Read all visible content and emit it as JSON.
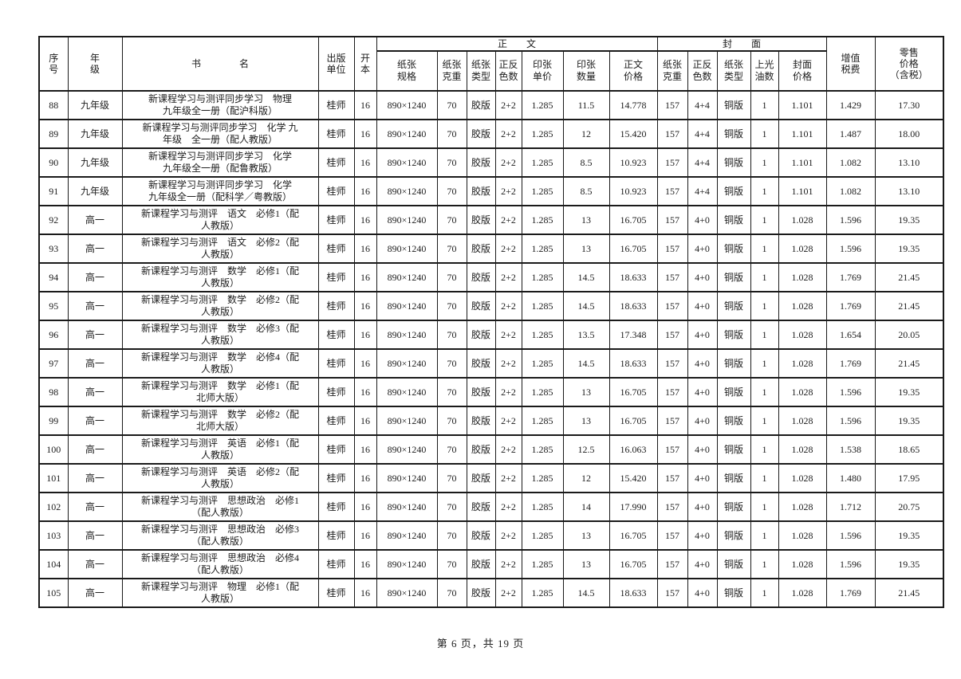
{
  "page": {
    "footer_text": "第 6 页，共 19 页"
  },
  "table": {
    "group_header": {
      "body": "正　　文",
      "cover": "封　　面"
    },
    "header": {
      "seq": "序\n号",
      "grade": "年\n级",
      "title": "书　　　　名",
      "publisher": "出版\n单位",
      "format": "开\n本",
      "paper_spec": "纸张\n规格",
      "paper_weight": "纸张\n克重",
      "paper_type": "纸张\n类型",
      "colors": "正反\n色数",
      "sheet_price": "印张\n单价",
      "sheet_count": "印张\n数量",
      "body_price": "正文\n价格",
      "cover_paper_weight": "纸张\n克重",
      "cover_colors": "正反\n色数",
      "cover_paper_type": "纸张\n类型",
      "varnish": "上光\n油数",
      "cover_price": "封面\n价格",
      "vat": "增值\n税费",
      "retail": "零售\n价格\n（含税）"
    },
    "rows": [
      {
        "seq": "88",
        "grade": "九年级",
        "title": "新课程学习与测评同步学习　物理\n九年级全一册（配沪科版）",
        "publisher": "桂师",
        "format": "16",
        "paper_spec": "890×1240",
        "paper_weight": "70",
        "paper_type": "胶版",
        "colors": "2+2",
        "sheet_price": "1.285",
        "sheet_count": "11.5",
        "body_price": "14.778",
        "cover_paper_weight": "157",
        "cover_colors": "4+4",
        "cover_paper_type": "铜版",
        "varnish": "1",
        "cover_price": "1.101",
        "vat": "1.429",
        "retail_price": "17.30"
      },
      {
        "seq": "89",
        "grade": "九年级",
        "title": "新课程学习与测评同步学习　化学 九\n年级　全一册（配人教版）",
        "publisher": "桂师",
        "format": "16",
        "paper_spec": "890×1240",
        "paper_weight": "70",
        "paper_type": "胶版",
        "colors": "2+2",
        "sheet_price": "1.285",
        "sheet_count": "12",
        "body_price": "15.420",
        "cover_paper_weight": "157",
        "cover_colors": "4+4",
        "cover_paper_type": "铜版",
        "varnish": "1",
        "cover_price": "1.101",
        "vat": "1.487",
        "retail_price": "18.00"
      },
      {
        "seq": "90",
        "grade": "九年级",
        "title": "新课程学习与测评同步学习　化学\n九年级全一册（配鲁教版）",
        "publisher": "桂师",
        "format": "16",
        "paper_spec": "890×1240",
        "paper_weight": "70",
        "paper_type": "胶版",
        "colors": "2+2",
        "sheet_price": "1.285",
        "sheet_count": "8.5",
        "body_price": "10.923",
        "cover_paper_weight": "157",
        "cover_colors": "4+4",
        "cover_paper_type": "铜版",
        "varnish": "1",
        "cover_price": "1.101",
        "vat": "1.082",
        "retail_price": "13.10"
      },
      {
        "seq": "91",
        "grade": "九年级",
        "title": "新课程学习与测评同步学习　化学\n九年级全一册（配科学／粤教版）",
        "publisher": "桂师",
        "format": "16",
        "paper_spec": "890×1240",
        "paper_weight": "70",
        "paper_type": "胶版",
        "colors": "2+2",
        "sheet_price": "1.285",
        "sheet_count": "8.5",
        "body_price": "10.923",
        "cover_paper_weight": "157",
        "cover_colors": "4+4",
        "cover_paper_type": "铜版",
        "varnish": "1",
        "cover_price": "1.101",
        "vat": "1.082",
        "retail_price": "13.10"
      },
      {
        "seq": "92",
        "grade": "高一",
        "title": "新课程学习与测评　语文　必修1（配\n人教版）",
        "publisher": "桂师",
        "format": "16",
        "paper_spec": "890×1240",
        "paper_weight": "70",
        "paper_type": "胶版",
        "colors": "2+2",
        "sheet_price": "1.285",
        "sheet_count": "13",
        "body_price": "16.705",
        "cover_paper_weight": "157",
        "cover_colors": "4+0",
        "cover_paper_type": "铜版",
        "varnish": "1",
        "cover_price": "1.028",
        "vat": "1.596",
        "retail_price": "19.35"
      },
      {
        "seq": "93",
        "grade": "高一",
        "title": "新课程学习与测评　语文　必修2（配\n人教版）",
        "publisher": "桂师",
        "format": "16",
        "paper_spec": "890×1240",
        "paper_weight": "70",
        "paper_type": "胶版",
        "colors": "2+2",
        "sheet_price": "1.285",
        "sheet_count": "13",
        "body_price": "16.705",
        "cover_paper_weight": "157",
        "cover_colors": "4+0",
        "cover_paper_type": "铜版",
        "varnish": "1",
        "cover_price": "1.028",
        "vat": "1.596",
        "retail_price": "19.35"
      },
      {
        "seq": "94",
        "grade": "高一",
        "title": "新课程学习与测评　数学　必修1（配\n人教版）",
        "publisher": "桂师",
        "format": "16",
        "paper_spec": "890×1240",
        "paper_weight": "70",
        "paper_type": "胶版",
        "colors": "2+2",
        "sheet_price": "1.285",
        "sheet_count": "14.5",
        "body_price": "18.633",
        "cover_paper_weight": "157",
        "cover_colors": "4+0",
        "cover_paper_type": "铜版",
        "varnish": "1",
        "cover_price": "1.028",
        "vat": "1.769",
        "retail_price": "21.45"
      },
      {
        "seq": "95",
        "grade": "高一",
        "title": "新课程学习与测评　数学　必修2（配\n人教版）",
        "publisher": "桂师",
        "format": "16",
        "paper_spec": "890×1240",
        "paper_weight": "70",
        "paper_type": "胶版",
        "colors": "2+2",
        "sheet_price": "1.285",
        "sheet_count": "14.5",
        "body_price": "18.633",
        "cover_paper_weight": "157",
        "cover_colors": "4+0",
        "cover_paper_type": "铜版",
        "varnish": "1",
        "cover_price": "1.028",
        "vat": "1.769",
        "retail_price": "21.45"
      },
      {
        "seq": "96",
        "grade": "高一",
        "title": "新课程学习与测评　数学　必修3（配\n人教版）",
        "publisher": "桂师",
        "format": "16",
        "paper_spec": "890×1240",
        "paper_weight": "70",
        "paper_type": "胶版",
        "colors": "2+2",
        "sheet_price": "1.285",
        "sheet_count": "13.5",
        "body_price": "17.348",
        "cover_paper_weight": "157",
        "cover_colors": "4+0",
        "cover_paper_type": "铜版",
        "varnish": "1",
        "cover_price": "1.028",
        "vat": "1.654",
        "retail_price": "20.05"
      },
      {
        "seq": "97",
        "grade": "高一",
        "title": "新课程学习与测评　数学　必修4（配\n人教版）",
        "publisher": "桂师",
        "format": "16",
        "paper_spec": "890×1240",
        "paper_weight": "70",
        "paper_type": "胶版",
        "colors": "2+2",
        "sheet_price": "1.285",
        "sheet_count": "14.5",
        "body_price": "18.633",
        "cover_paper_weight": "157",
        "cover_colors": "4+0",
        "cover_paper_type": "铜版",
        "varnish": "1",
        "cover_price": "1.028",
        "vat": "1.769",
        "retail_price": "21.45"
      },
      {
        "seq": "98",
        "grade": "高一",
        "title": "新课程学习与测评　数学　必修1（配\n北师大版）",
        "publisher": "桂师",
        "format": "16",
        "paper_spec": "890×1240",
        "paper_weight": "70",
        "paper_type": "胶版",
        "colors": "2+2",
        "sheet_price": "1.285",
        "sheet_count": "13",
        "body_price": "16.705",
        "cover_paper_weight": "157",
        "cover_colors": "4+0",
        "cover_paper_type": "铜版",
        "varnish": "1",
        "cover_price": "1.028",
        "vat": "1.596",
        "retail_price": "19.35"
      },
      {
        "seq": "99",
        "grade": "高一",
        "title": "新课程学习与测评　数学　必修2（配\n北师大版）",
        "publisher": "桂师",
        "format": "16",
        "paper_spec": "890×1240",
        "paper_weight": "70",
        "paper_type": "胶版",
        "colors": "2+2",
        "sheet_price": "1.285",
        "sheet_count": "13",
        "body_price": "16.705",
        "cover_paper_weight": "157",
        "cover_colors": "4+0",
        "cover_paper_type": "铜版",
        "varnish": "1",
        "cover_price": "1.028",
        "vat": "1.596",
        "retail_price": "19.35"
      },
      {
        "seq": "100",
        "grade": "高一",
        "title": "新课程学习与测评　英语　必修1（配\n人教版）",
        "publisher": "桂师",
        "format": "16",
        "paper_spec": "890×1240",
        "paper_weight": "70",
        "paper_type": "胶版",
        "colors": "2+2",
        "sheet_price": "1.285",
        "sheet_count": "12.5",
        "body_price": "16.063",
        "cover_paper_weight": "157",
        "cover_colors": "4+0",
        "cover_paper_type": "铜版",
        "varnish": "1",
        "cover_price": "1.028",
        "vat": "1.538",
        "retail_price": "18.65"
      },
      {
        "seq": "101",
        "grade": "高一",
        "title": "新课程学习与测评　英语　必修2（配\n人教版）",
        "publisher": "桂师",
        "format": "16",
        "paper_spec": "890×1240",
        "paper_weight": "70",
        "paper_type": "胶版",
        "colors": "2+2",
        "sheet_price": "1.285",
        "sheet_count": "12",
        "body_price": "15.420",
        "cover_paper_weight": "157",
        "cover_colors": "4+0",
        "cover_paper_type": "铜版",
        "varnish": "1",
        "cover_price": "1.028",
        "vat": "1.480",
        "retail_price": "17.95"
      },
      {
        "seq": "102",
        "grade": "高一",
        "title": "新课程学习与测评　思想政治　必修1\n（配人教版）",
        "publisher": "桂师",
        "format": "16",
        "paper_spec": "890×1240",
        "paper_weight": "70",
        "paper_type": "胶版",
        "colors": "2+2",
        "sheet_price": "1.285",
        "sheet_count": "14",
        "body_price": "17.990",
        "cover_paper_weight": "157",
        "cover_colors": "4+0",
        "cover_paper_type": "铜版",
        "varnish": "1",
        "cover_price": "1.028",
        "vat": "1.712",
        "retail_price": "20.75"
      },
      {
        "seq": "103",
        "grade": "高一",
        "title": "新课程学习与测评　思想政治　必修3\n（配人教版）",
        "publisher": "桂师",
        "format": "16",
        "paper_spec": "890×1240",
        "paper_weight": "70",
        "paper_type": "胶版",
        "colors": "2+2",
        "sheet_price": "1.285",
        "sheet_count": "13",
        "body_price": "16.705",
        "cover_paper_weight": "157",
        "cover_colors": "4+0",
        "cover_paper_type": "铜版",
        "varnish": "1",
        "cover_price": "1.028",
        "vat": "1.596",
        "retail_price": "19.35"
      },
      {
        "seq": "104",
        "grade": "高一",
        "title": "新课程学习与测评　思想政治　必修4\n（配人教版）",
        "publisher": "桂师",
        "format": "16",
        "paper_spec": "890×1240",
        "paper_weight": "70",
        "paper_type": "胶版",
        "colors": "2+2",
        "sheet_price": "1.285",
        "sheet_count": "13",
        "body_price": "16.705",
        "cover_paper_weight": "157",
        "cover_colors": "4+0",
        "cover_paper_type": "铜版",
        "varnish": "1",
        "cover_price": "1.028",
        "vat": "1.596",
        "retail_price": "19.35"
      },
      {
        "seq": "105",
        "grade": "高一",
        "title": "新课程学习与测评　物理　必修1（配\n人教版）",
        "publisher": "桂师",
        "format": "16",
        "paper_spec": "890×1240",
        "paper_weight": "70",
        "paper_type": "胶版",
        "colors": "2+2",
        "sheet_price": "1.285",
        "sheet_count": "14.5",
        "body_price": "18.633",
        "cover_paper_weight": "157",
        "cover_colors": "4+0",
        "cover_paper_type": "铜版",
        "varnish": "1",
        "cover_price": "1.028",
        "vat": "1.769",
        "retail_price": "21.45"
      }
    ]
  }
}
